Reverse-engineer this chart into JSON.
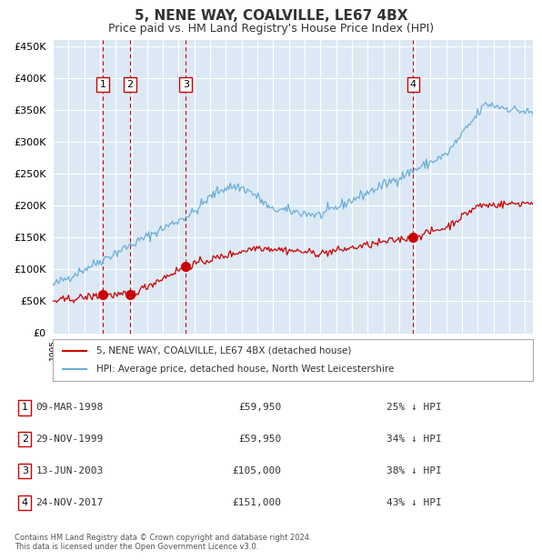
{
  "title": "5, NENE WAY, COALVILLE, LE67 4BX",
  "subtitle": "Price paid vs. HM Land Registry's House Price Index (HPI)",
  "ylabel": "",
  "bg_color": "#dce9f5",
  "plot_bg_color": "#dce9f5",
  "grid_color": "#ffffff",
  "hpi_color": "#6baed6",
  "price_color": "#cc0000",
  "ylim": [
    0,
    460000
  ],
  "yticks": [
    0,
    50000,
    100000,
    150000,
    200000,
    250000,
    300000,
    350000,
    400000,
    450000
  ],
  "ytick_labels": [
    "£0",
    "£50K",
    "£100K",
    "£150K",
    "£200K",
    "£250K",
    "£300K",
    "£350K",
    "£400K",
    "£450K"
  ],
  "sales": [
    {
      "date": "1998-03-09",
      "price": 59950,
      "label": "1",
      "x": 1998.19
    },
    {
      "date": "1999-11-29",
      "price": 59950,
      "label": "2",
      "x": 1999.91
    },
    {
      "date": "2003-06-13",
      "price": 105000,
      "label": "3",
      "x": 2003.45
    },
    {
      "date": "2017-11-24",
      "price": 151000,
      "label": "4",
      "x": 2017.9
    }
  ],
  "legend_entries": [
    "5, NENE WAY, COALVILLE, LE67 4BX (detached house)",
    "HPI: Average price, detached house, North West Leicestershire"
  ],
  "table": [
    {
      "num": "1",
      "date": "09-MAR-1998",
      "price": "£59,950",
      "pct": "25% ↓ HPI"
    },
    {
      "num": "2",
      "date": "29-NOV-1999",
      "price": "£59,950",
      "pct": "34% ↓ HPI"
    },
    {
      "num": "3",
      "date": "13-JUN-2003",
      "price": "£105,000",
      "pct": "38% ↓ HPI"
    },
    {
      "num": "4",
      "date": "24-NOV-2017",
      "price": "£151,000",
      "pct": "43% ↓ HPI"
    }
  ],
  "footnote": "Contains HM Land Registry data © Crown copyright and database right 2024.\nThis data is licensed under the Open Government Licence v3.0.",
  "xlim_start": 1995.0,
  "xlim_end": 2025.5
}
